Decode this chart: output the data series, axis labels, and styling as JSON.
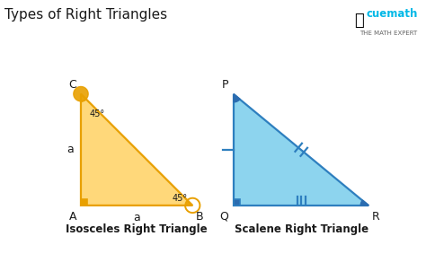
{
  "title": "Types of Right Triangles",
  "title_fontsize": 11,
  "title_color": "#1a1a1a",
  "bg_color": "#ffffff",
  "triangle1": {
    "A": [
      1.0,
      0.7
    ],
    "B": [
      4.8,
      0.7
    ],
    "C": [
      1.0,
      4.5
    ],
    "fill_color": "#FFD87A",
    "edge_color": "#E8A000",
    "sq_color": "#E8A000",
    "angle_labels": [
      "45°",
      "45°"
    ],
    "side_label": "a",
    "bottom_label": "a",
    "caption": "Isosceles Right Triangle",
    "caption_color": "#1a1a1a",
    "caption_fontsize": 8.5
  },
  "triangle2": {
    "P": [
      6.2,
      4.5
    ],
    "Q": [
      6.2,
      0.7
    ],
    "R": [
      10.8,
      0.7
    ],
    "fill_color": "#8DD4EE",
    "edge_color": "#2E7FBF",
    "sq_color": "#2B6CB0",
    "angle_fill": "#2B6CB0",
    "caption": "Scalene Right Triangle",
    "caption_color": "#1a1a1a",
    "caption_fontsize": 8.5
  },
  "xlim": [
    0,
    11.5
  ],
  "ylim": [
    -0.8,
    5.8
  ]
}
